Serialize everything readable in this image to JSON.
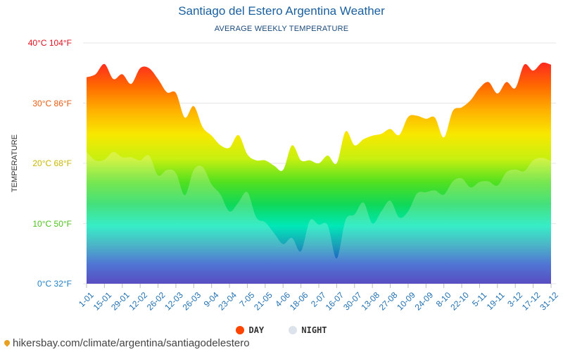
{
  "header": {
    "title": "Santiago del Estero Argentina Weather",
    "subtitle": "AVERAGE WEEKLY TEMPERATURE"
  },
  "source": {
    "url_text": "hikersbay.com/climate/argentina/santiagodelestero",
    "icon": "map-pin-icon"
  },
  "legend": {
    "day": {
      "label": "DAY",
      "color": "#ff4400"
    },
    "night": {
      "label": "NIGHT",
      "color": "#dde3ea"
    }
  },
  "chart_data": {
    "type": "area",
    "title": "Santiago del Estero Argentina Weather",
    "subtitle": "AVERAGE WEEKLY TEMPERATURE",
    "ylabel": "TEMPERATURE",
    "ylim": [
      0,
      40
    ],
    "y_ticks": [
      {
        "c": 0,
        "label": "0°C 32°F",
        "color": "#1f7fc4"
      },
      {
        "c": 10,
        "label": "10°C 50°F",
        "color": "#4cc21a"
      },
      {
        "c": 20,
        "label": "20°C 68°F",
        "color": "#c9b800"
      },
      {
        "c": 30,
        "label": "30°C 86°F",
        "color": "#e85a10"
      },
      {
        "c": 40,
        "label": "40°C 104°F",
        "color": "#e01020"
      }
    ],
    "x_tick_labels": [
      "1-01",
      "15-01",
      "29-01",
      "12-02",
      "26-02",
      "12-03",
      "26-03",
      "9-04",
      "23-04",
      "7-05",
      "21-05",
      "4-06",
      "18-06",
      "2-07",
      "16-07",
      "30-07",
      "13-08",
      "27-08",
      "10-09",
      "24-09",
      "8-10",
      "22-10",
      "5-11",
      "19-11",
      "3-12",
      "17-12",
      "31-12"
    ],
    "legend_position": "bottom",
    "grid": true,
    "series": [
      {
        "name": "DAY",
        "values": [
          34.3,
          34.8,
          36.5,
          34.0,
          34.8,
          33.2,
          35.8,
          35.8,
          34.0,
          31.8,
          31.7,
          27.6,
          29.5,
          26.0,
          24.6,
          23.0,
          22.6,
          24.7,
          21.5,
          20.5,
          20.5,
          19.6,
          18.9,
          23.0,
          20.5,
          20.5,
          20.0,
          21.3,
          20.0,
          25.3,
          23.0,
          24.0,
          24.6,
          24.9,
          25.7,
          24.7,
          27.7,
          27.9,
          27.4,
          27.6,
          24.3,
          28.7,
          29.3,
          30.5,
          32.5,
          33.5,
          31.6,
          33.5,
          32.5,
          36.4,
          35.4,
          36.7,
          36.4
        ]
      },
      {
        "name": "NIGHT",
        "values": [
          21.9,
          20.5,
          20.6,
          21.9,
          21.0,
          21.0,
          20.5,
          21.3,
          18.0,
          18.9,
          18.4,
          14.7,
          18.9,
          19.4,
          16.5,
          14.8,
          12.0,
          13.5,
          15.2,
          11.0,
          10.2,
          8.4,
          6.6,
          7.6,
          5.4,
          10.5,
          9.8,
          9.7,
          4.2,
          10.6,
          11.5,
          13.5,
          10.0,
          12.0,
          13.8,
          11.0,
          12.0,
          15.0,
          15.2,
          15.5,
          14.8,
          17.0,
          17.5,
          16.0,
          16.9,
          17.0,
          16.3,
          18.5,
          19.0,
          18.7,
          20.5,
          20.9,
          20.4
        ]
      }
    ]
  }
}
